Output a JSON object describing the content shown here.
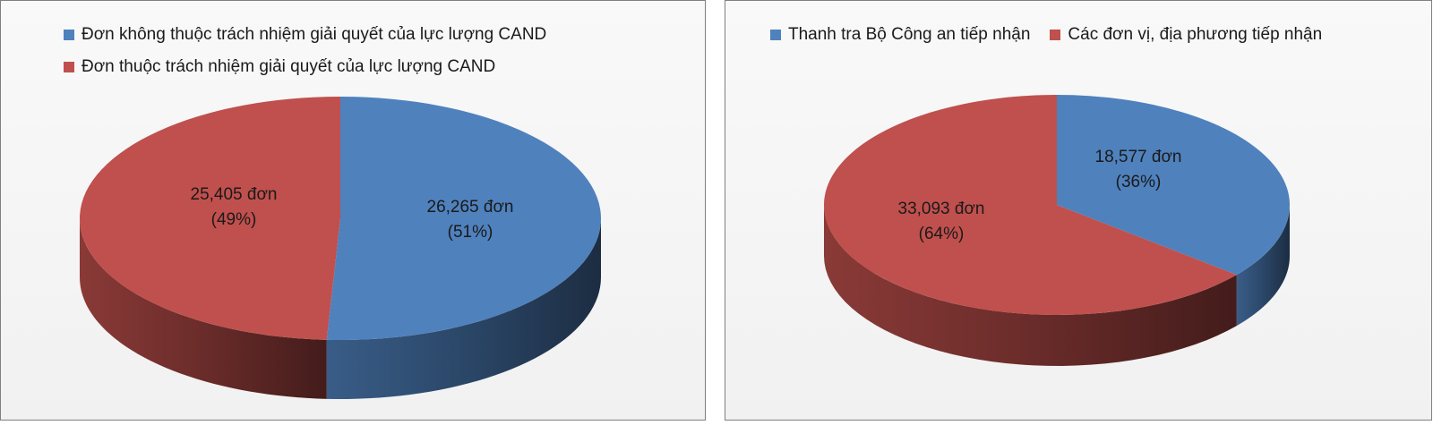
{
  "colors": {
    "blue": "#4f81bd",
    "red": "#c0504d"
  },
  "chart_data": [
    {
      "type": "pie",
      "legend_position": "top",
      "series": [
        {
          "name": "Đơn không thuộc trách nhiệm giải quyết của lực lượng CAND",
          "value": 26265,
          "percent": 51,
          "label_value": "26,265 đơn",
          "label_percent": "(51%)",
          "color": "#4f81bd"
        },
        {
          "name": "Đơn thuộc trách nhiệm giải quyết của lực lượng CAND",
          "value": 25405,
          "percent": 49,
          "label_value": "25,405 đơn",
          "label_percent": "(49%)",
          "color": "#c0504d"
        }
      ]
    },
    {
      "type": "pie",
      "legend_position": "top",
      "series": [
        {
          "name": "Thanh  tra Bộ Công an tiếp nhận",
          "value": 18577,
          "percent": 36,
          "label_value": "18,577 đơn",
          "label_percent": "(36%)",
          "color": "#4f81bd"
        },
        {
          "name": "Các đơn vị, địa phương tiếp nhận",
          "value": 33093,
          "percent": 64,
          "label_value": "33,093 đơn",
          "label_percent": "(64%)",
          "color": "#c0504d"
        }
      ]
    }
  ]
}
